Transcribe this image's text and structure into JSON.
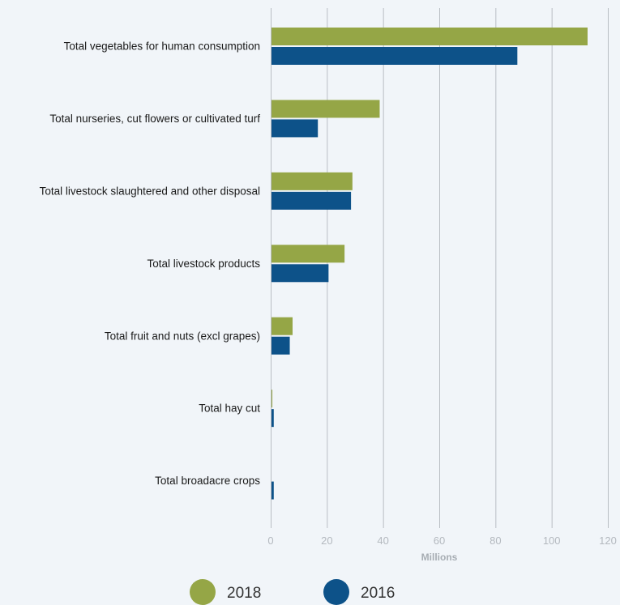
{
  "chart_data": {
    "type": "bar",
    "orientation": "horizontal",
    "categories": [
      "Total vegetables for human consumption",
      "Total nurseries, cut flowers or cultivated turf",
      "Total livestock slaughtered and other disposal",
      "Total livestock products",
      "Total fruit and nuts (excl grapes)",
      "Total hay cut",
      "Total broadacre crops"
    ],
    "series": [
      {
        "name": "2018",
        "color": "#95a646",
        "values": [
          112.5,
          38.5,
          28.8,
          26,
          7.5,
          0.3,
          0
        ]
      },
      {
        "name": "2016",
        "color": "#0d5289",
        "values": [
          87.5,
          16.5,
          28.3,
          20.3,
          6.5,
          0.8,
          0.8
        ]
      }
    ],
    "x_ticks": [
      0,
      20,
      40,
      60,
      80,
      100,
      120
    ],
    "xlim": [
      0,
      120
    ],
    "xlabel": "Millions",
    "title": "",
    "grid": true,
    "legend_position": "bottom"
  }
}
